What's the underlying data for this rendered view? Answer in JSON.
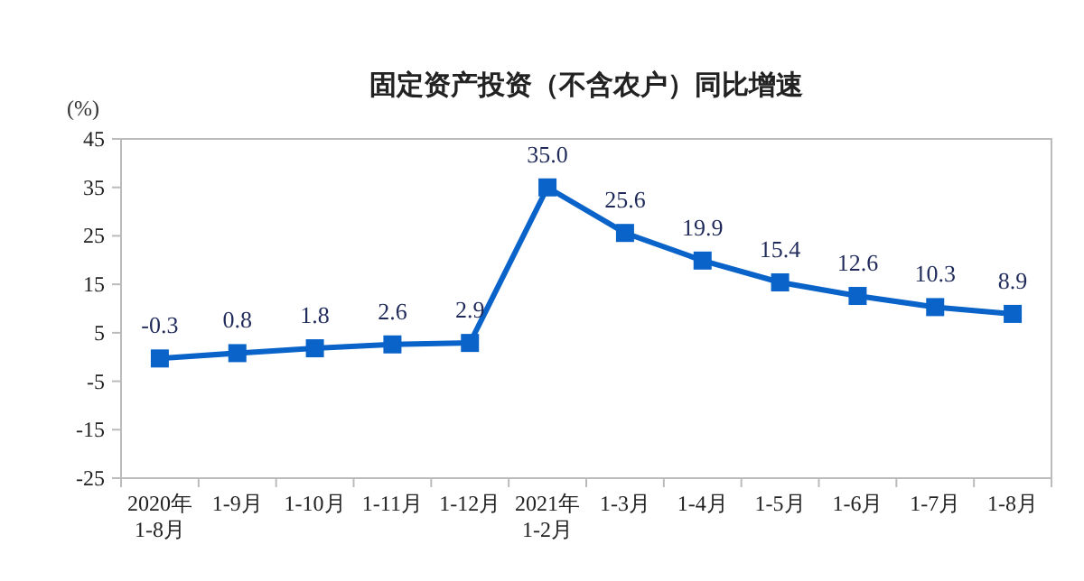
{
  "chart_data": {
    "type": "line",
    "title": "固定资产投资（不含农户）同比增速",
    "ylabel": "(%)",
    "categories": [
      "2020年\n1-8月",
      "1-9月",
      "1-10月",
      "1-11月",
      "1-12月",
      "2021年\n1-2月",
      "1-3月",
      "1-4月",
      "1-5月",
      "1-6月",
      "1-7月",
      "1-8月"
    ],
    "values": [
      -0.3,
      0.8,
      1.8,
      2.6,
      2.9,
      35.0,
      25.6,
      19.9,
      15.4,
      12.6,
      10.3,
      8.9
    ],
    "value_labels": [
      "-0.3",
      "0.8",
      "1.8",
      "2.6",
      "2.9",
      "35.0",
      "25.6",
      "19.9",
      "15.4",
      "12.6",
      "10.3",
      "8.9"
    ],
    "color": "#0a63c9",
    "ylim": [
      -25,
      45
    ],
    "yticks": [
      -25,
      -15,
      -5,
      5,
      15,
      25,
      35,
      45
    ],
    "marker": "square",
    "line_style": "solid",
    "grid": false,
    "legend": false
  }
}
